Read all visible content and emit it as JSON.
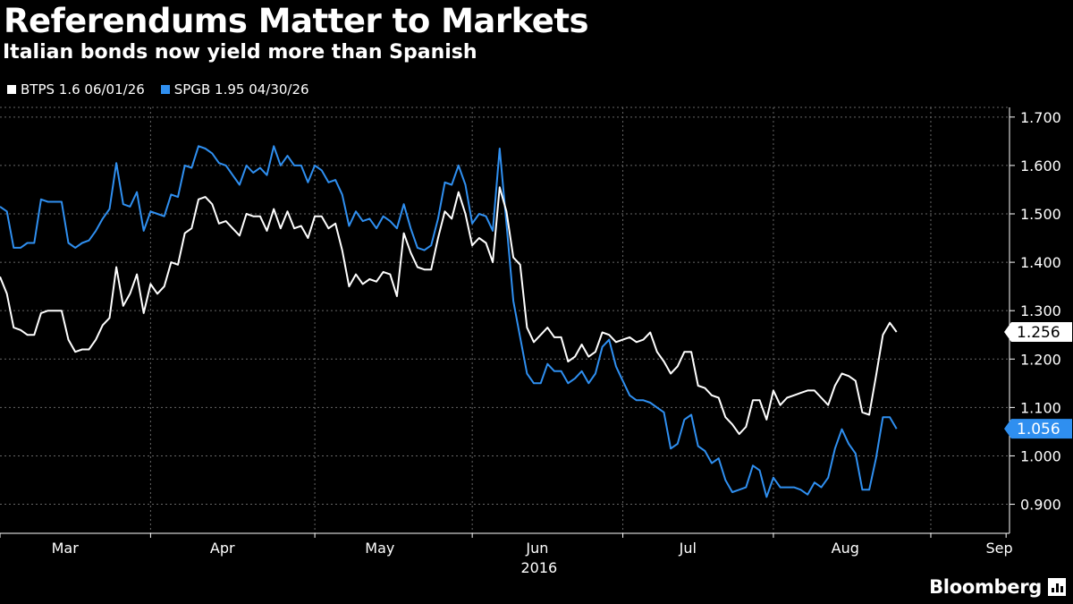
{
  "header": {
    "title": "Referendums Matter to Markets",
    "subtitle": "Italian bonds now yield more than Spanish"
  },
  "legend": [
    {
      "label": "BTPS 1.6 06/01/26",
      "color": "#ffffff"
    },
    {
      "label": "SPGB 1.95 04/30/26",
      "color": "#2f8ff0"
    }
  ],
  "footer": {
    "brand": "Bloomberg"
  },
  "chart_data": {
    "type": "line",
    "title": "Referendums Matter to Markets",
    "subtitle": "Italian bonds now yield more than Spanish",
    "xlabel": "2016",
    "ylabel": "",
    "ylim": [
      0.84,
      1.72
    ],
    "yticks": [
      0.9,
      1.0,
      1.1,
      1.2,
      1.3,
      1.4,
      1.5,
      1.6,
      1.7
    ],
    "ytick_labels": [
      "0.900",
      "1.000",
      "1.100",
      "1.200",
      "1.300",
      "1.400",
      "1.500",
      "1.600",
      "1.700"
    ],
    "x_month_labels": [
      "Mar",
      "Apr",
      "May",
      "Jun",
      "Jul",
      "Aug",
      "Sep"
    ],
    "x_month_label_pos": [
      9.5,
      32.5,
      55.5,
      78.5,
      100.5,
      123.5,
      146
    ],
    "x_month_boundaries": [
      0,
      22,
      46,
      69,
      91,
      113,
      136,
      147
    ],
    "x_year_label": "2016",
    "x_max": 147.5,
    "grid": true,
    "legend_position": "top-left",
    "series": [
      {
        "name": "BTPS 1.6 06/01/26",
        "color": "#ffffff",
        "last_label": "1.256",
        "values": [
          1.37,
          1.335,
          1.265,
          1.26,
          1.25,
          1.25,
          1.295,
          1.3,
          1.3,
          1.3,
          1.24,
          1.215,
          1.22,
          1.22,
          1.24,
          1.27,
          1.285,
          1.39,
          1.31,
          1.335,
          1.375,
          1.295,
          1.355,
          1.335,
          1.35,
          1.4,
          1.395,
          1.46,
          1.47,
          1.53,
          1.535,
          1.52,
          1.48,
          1.485,
          1.47,
          1.455,
          1.5,
          1.495,
          1.495,
          1.465,
          1.51,
          1.47,
          1.505,
          1.47,
          1.475,
          1.45,
          1.495,
          1.495,
          1.47,
          1.48,
          1.425,
          1.35,
          1.375,
          1.355,
          1.365,
          1.36,
          1.38,
          1.375,
          1.33,
          1.46,
          1.42,
          1.39,
          1.385,
          1.385,
          1.45,
          1.505,
          1.49,
          1.545,
          1.5,
          1.435,
          1.45,
          1.44,
          1.4,
          1.555,
          1.505,
          1.41,
          1.395,
          1.265,
          1.235,
          1.25,
          1.265,
          1.245,
          1.245,
          1.195,
          1.205,
          1.23,
          1.205,
          1.215,
          1.255,
          1.25,
          1.235,
          1.24,
          1.245,
          1.235,
          1.24,
          1.255,
          1.215,
          1.195,
          1.17,
          1.185,
          1.215,
          1.215,
          1.145,
          1.14,
          1.125,
          1.12,
          1.08,
          1.065,
          1.045,
          1.06,
          1.115,
          1.115,
          1.075,
          1.135,
          1.105,
          1.12,
          1.125,
          1.13,
          1.135,
          1.135,
          1.12,
          1.105,
          1.145,
          1.17,
          1.165,
          1.155,
          1.09,
          1.085,
          1.165,
          1.25,
          1.275,
          1.256
        ]
      },
      {
        "name": "SPGB 1.95 04/30/26",
        "color": "#2f8ff0",
        "last_label": "1.056",
        "values": [
          1.515,
          1.505,
          1.43,
          1.43,
          1.44,
          1.44,
          1.53,
          1.525,
          1.525,
          1.525,
          1.44,
          1.43,
          1.44,
          1.445,
          1.465,
          1.49,
          1.51,
          1.605,
          1.52,
          1.515,
          1.545,
          1.465,
          1.505,
          1.5,
          1.495,
          1.54,
          1.535,
          1.6,
          1.595,
          1.64,
          1.635,
          1.625,
          1.605,
          1.6,
          1.58,
          1.56,
          1.6,
          1.585,
          1.595,
          1.58,
          1.64,
          1.6,
          1.62,
          1.6,
          1.6,
          1.565,
          1.6,
          1.59,
          1.565,
          1.57,
          1.54,
          1.475,
          1.505,
          1.485,
          1.49,
          1.47,
          1.495,
          1.485,
          1.47,
          1.52,
          1.47,
          1.43,
          1.425,
          1.435,
          1.49,
          1.565,
          1.56,
          1.6,
          1.56,
          1.48,
          1.5,
          1.495,
          1.465,
          1.635,
          1.48,
          1.32,
          1.245,
          1.17,
          1.15,
          1.15,
          1.19,
          1.175,
          1.175,
          1.15,
          1.16,
          1.175,
          1.15,
          1.17,
          1.225,
          1.24,
          1.185,
          1.155,
          1.125,
          1.115,
          1.115,
          1.11,
          1.1,
          1.09,
          1.015,
          1.025,
          1.075,
          1.085,
          1.02,
          1.01,
          0.985,
          0.995,
          0.95,
          0.925,
          0.93,
          0.935,
          0.98,
          0.97,
          0.915,
          0.955,
          0.935,
          0.935,
          0.935,
          0.93,
          0.92,
          0.945,
          0.935,
          0.955,
          1.015,
          1.055,
          1.025,
          1.005,
          0.93,
          0.93,
          0.995,
          1.08,
          1.08,
          1.056
        ]
      }
    ]
  }
}
